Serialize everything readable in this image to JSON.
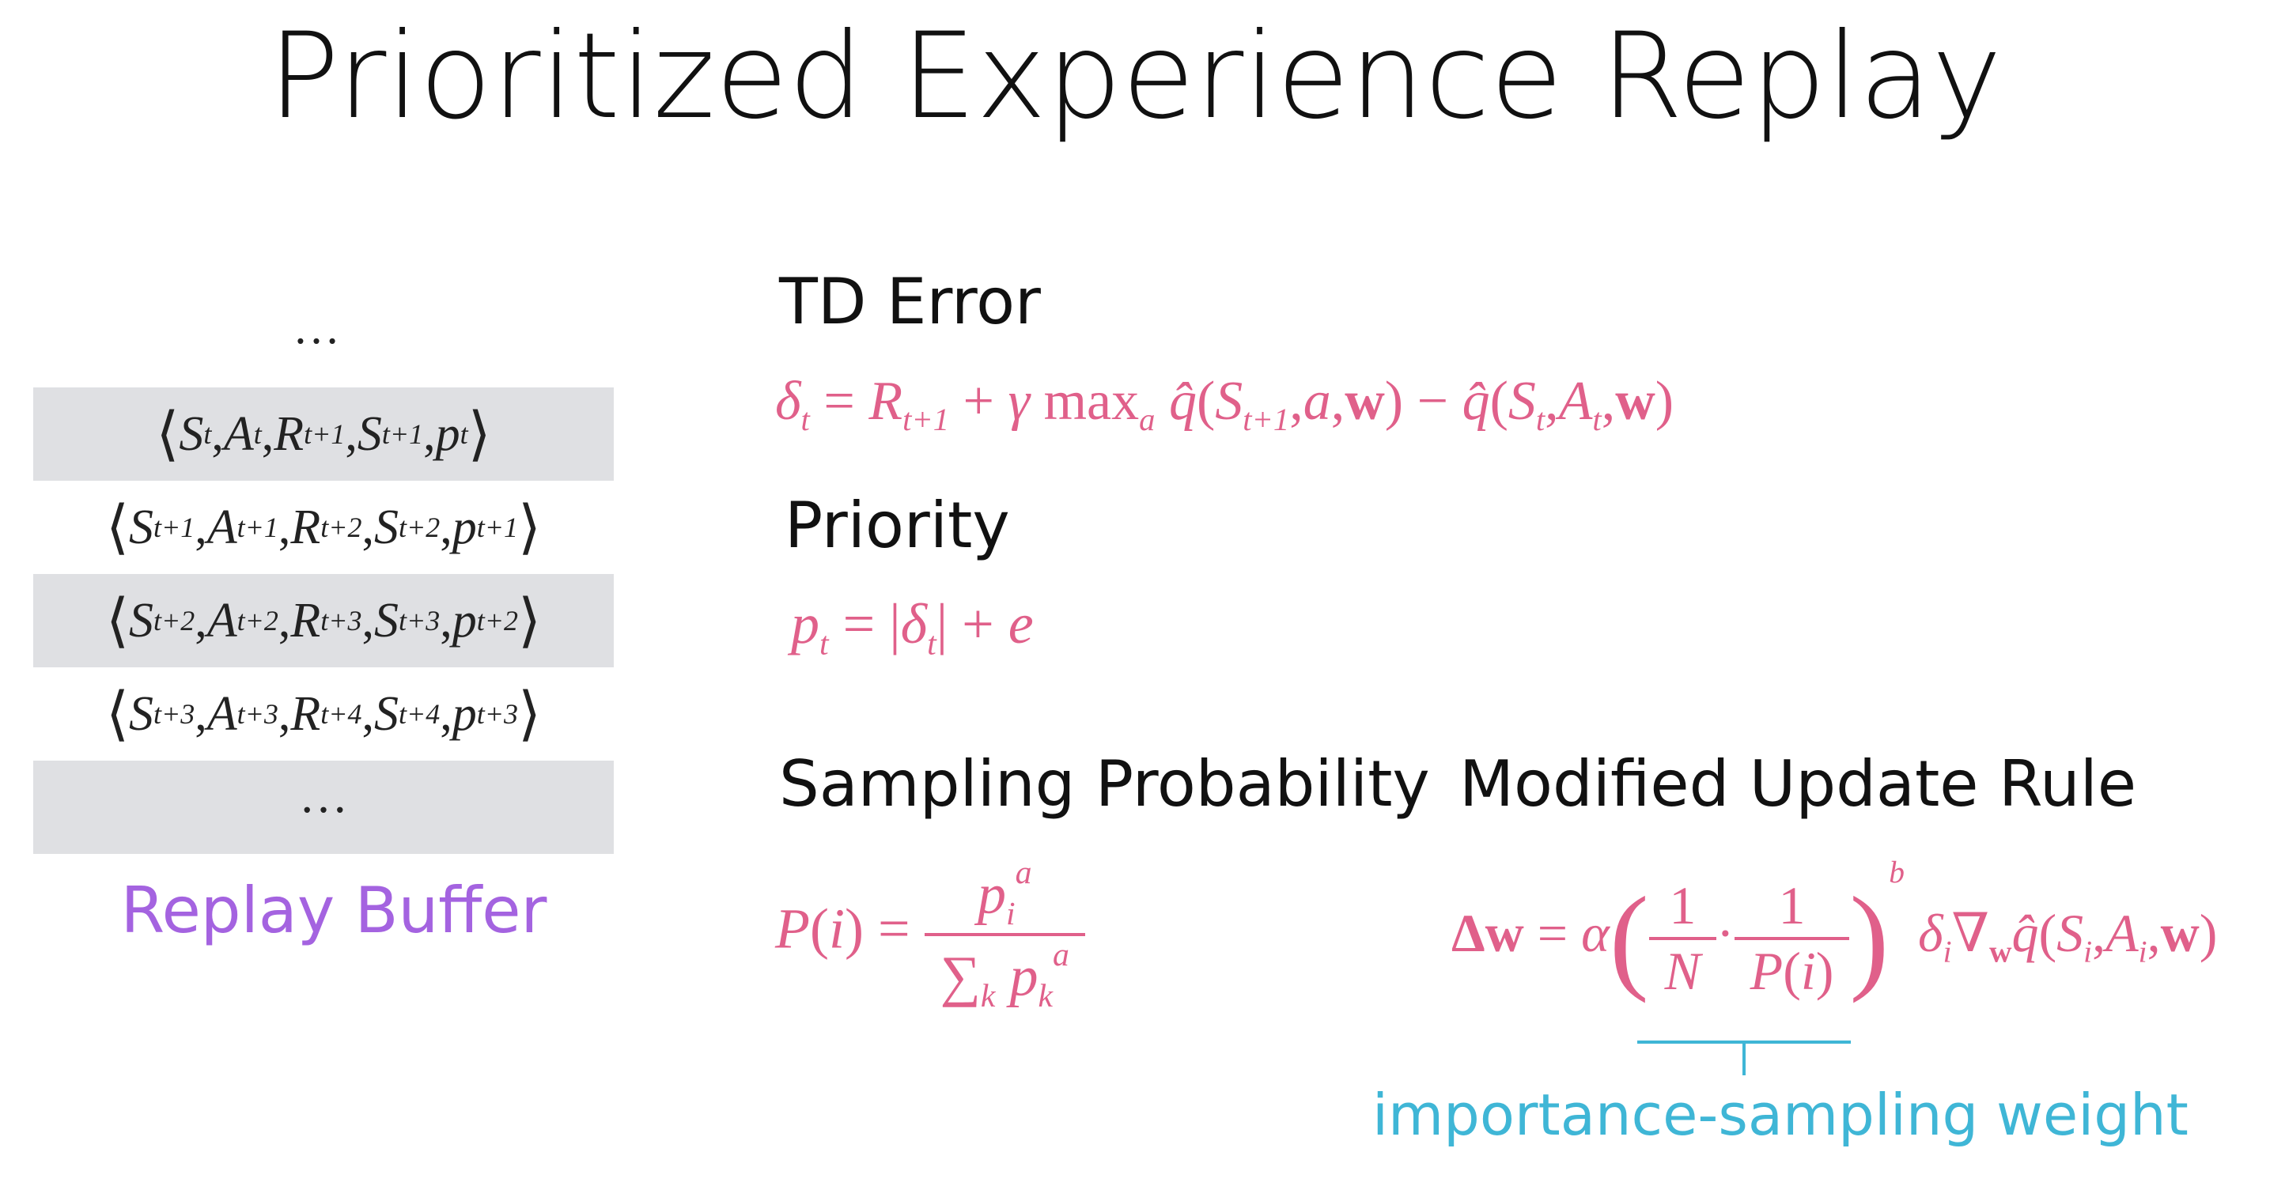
{
  "title": "Prioritized Experience Replay",
  "headings": {
    "td_error": "TD Error",
    "priority": "Priority",
    "sampling_probability": "Sampling Probability",
    "modified_update_rule": "Modified Update Rule"
  },
  "buffer": {
    "top_ellipsis": "…",
    "bottom_ellipsis": "…",
    "label": "Replay Buffer",
    "label_color": "#a463e0"
  },
  "annotation": {
    "text": "importance-sampling weight",
    "color": "#3fb6d6"
  },
  "colors": {
    "formula": "#e0608a",
    "buffer_text": "#222222",
    "row_shade": "#dfe0e3"
  }
}
